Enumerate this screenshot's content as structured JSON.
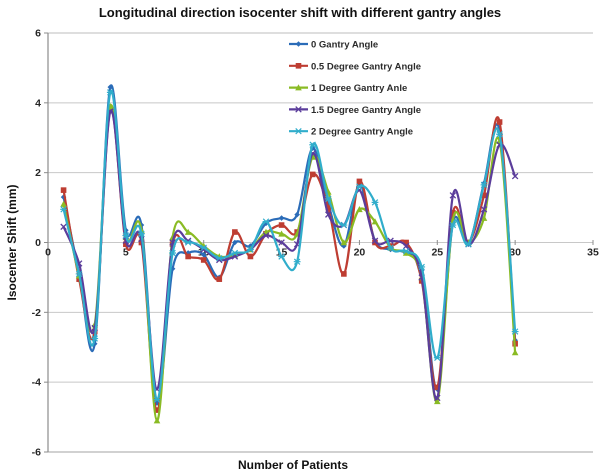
{
  "chart_data": {
    "type": "line",
    "title": "Longitudinal direction isocenter shift with different gantry angles",
    "xlabel": "Number of Patients",
    "ylabel": "Isocenter Shift (mm)",
    "xlim": [
      0,
      35
    ],
    "ylim": [
      -6,
      6
    ],
    "xticks": [
      0,
      5,
      10,
      15,
      20,
      25,
      30,
      35
    ],
    "yticks": [
      6,
      4,
      2,
      0,
      -2,
      -4,
      -6
    ],
    "grid": "horizontal",
    "smooth": true,
    "legend_position": "top-center-inside",
    "colors": {
      "gridline": "#c8c8c8",
      "axis": "#8c8c8c",
      "plot_top_border": "#bdbdbd",
      "plot_bottom_border": "#a3a3a3"
    },
    "x": [
      1,
      2,
      3,
      4,
      5,
      6,
      7,
      8,
      9,
      10,
      11,
      12,
      13,
      14,
      15,
      16,
      17,
      18,
      19,
      20,
      21,
      22,
      23,
      24,
      25,
      26,
      27,
      28,
      29,
      30
    ],
    "series": [
      {
        "name": "0 Gantry Angle",
        "color": "#2b6cb8",
        "marker": "diamond",
        "values": [
          1.3,
          -0.9,
          -2.9,
          4.45,
          0.35,
          0.5,
          -4.6,
          -0.75,
          -0.3,
          -0.35,
          -1.0,
          0.0,
          -0.1,
          0.55,
          0.7,
          0.8,
          2.7,
          1.1,
          -0.1,
          1.65,
          0.05,
          -0.2,
          -0.3,
          -0.8,
          -4.2,
          0.55,
          -0.05,
          1.7,
          3.2,
          -2.8
        ]
      },
      {
        "name": "0.5 Degree Gantry Angle",
        "color": "#be3d32",
        "marker": "square",
        "values": [
          1.5,
          -1.05,
          -2.55,
          3.8,
          -0.05,
          0.0,
          -4.8,
          -0.05,
          -0.4,
          -0.5,
          -1.05,
          0.3,
          -0.4,
          0.25,
          0.5,
          0.3,
          1.95,
          1.0,
          -0.9,
          1.75,
          0.0,
          -0.1,
          0.0,
          -1.1,
          -4.15,
          0.85,
          0.0,
          1.35,
          3.45,
          -2.9
        ]
      },
      {
        "name": "1 Degree Gantry Anle",
        "color": "#8abb24",
        "marker": "triangle",
        "values": [
          1.1,
          -0.95,
          -2.35,
          3.9,
          0.15,
          0.35,
          -5.1,
          0.15,
          0.3,
          -0.1,
          -0.4,
          -0.35,
          -0.2,
          0.3,
          0.25,
          0.25,
          2.45,
          1.45,
          0.0,
          0.95,
          0.6,
          -0.15,
          -0.3,
          -1.0,
          -4.55,
          0.65,
          0.0,
          0.7,
          2.9,
          -3.15
        ]
      },
      {
        "name": "1.5 Degree Gantry Angle",
        "color": "#5b3d9b",
        "marker": "x",
        "values": [
          0.45,
          -0.6,
          -2.45,
          3.75,
          0.05,
          0.1,
          -4.2,
          0.0,
          0.05,
          -0.2,
          -0.5,
          -0.4,
          -0.2,
          0.2,
          0.0,
          -0.05,
          2.55,
          0.8,
          0.5,
          1.5,
          0.05,
          0.05,
          -0.1,
          -1.0,
          -4.45,
          1.35,
          -0.05,
          0.95,
          2.8,
          1.9
        ]
      },
      {
        "name": "2 Degree Gantry Angle",
        "color": "#30adcb",
        "marker": "star",
        "values": [
          0.95,
          -0.9,
          -2.75,
          4.3,
          0.2,
          0.25,
          -4.5,
          -0.3,
          0.0,
          -0.15,
          -0.45,
          -0.3,
          -0.2,
          0.6,
          -0.4,
          -0.55,
          2.8,
          1.25,
          0.5,
          1.6,
          1.15,
          -0.15,
          -0.25,
          -0.7,
          -3.3,
          0.5,
          -0.05,
          1.65,
          3.1,
          -2.55
        ]
      }
    ]
  }
}
